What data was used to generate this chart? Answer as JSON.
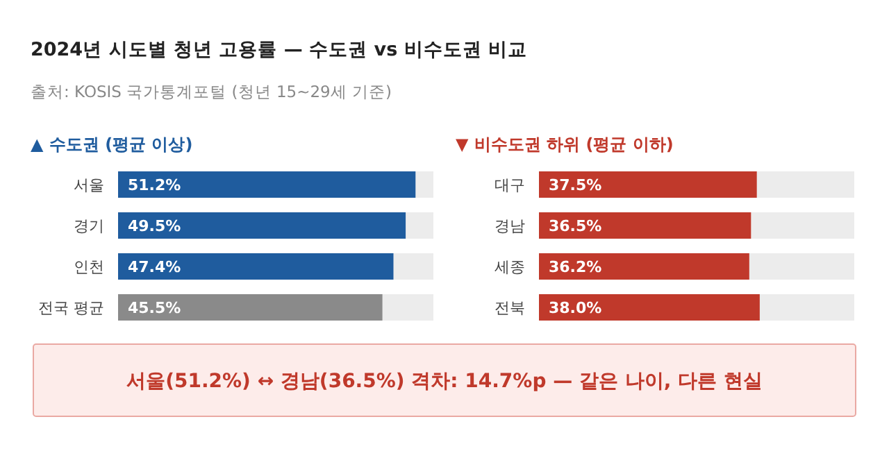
{
  "chart_data": [
    {
      "type": "other",
      "title": "2024년 시도별 청년 고용률 — 수도권 vs 비수도권 비교",
      "subtitle": "출처: KOSIS 국가통계포털 (청년 15~29세 기준)"
    },
    {
      "type": "bar",
      "orientation": "horizontal",
      "title": "▲ 수도권 (평균 이상)",
      "categories": [
        "서울",
        "경기",
        "인천",
        "전국 평균"
      ],
      "values": [
        51.2,
        49.5,
        47.4,
        45.5
      ],
      "colors": [
        "#1f5c9e",
        "#1f5c9e",
        "#1f5c9e",
        "#8a8a8a"
      ],
      "value_labels": [
        "51.2%",
        "49.5%",
        "47.4%",
        "45.5%"
      ]
    },
    {
      "type": "bar",
      "orientation": "horizontal",
      "title": "▼ 비수도권 하위 (평균 이하)",
      "categories": [
        "대구",
        "경남",
        "세종",
        "전북"
      ],
      "values": [
        37.5,
        36.5,
        36.2,
        38.0
      ],
      "colors": [
        "#c0392b",
        "#c0392b",
        "#c0392b",
        "#c0392b"
      ],
      "value_labels": [
        "37.5%",
        "36.5%",
        "36.2%",
        "38.0%"
      ]
    },
    {
      "type": "other",
      "annotations": [
        "서울(51.2%) ↔ 경남(36.5%) 격차: 14.7%p — 같은 나이, 다른 현실"
      ]
    }
  ]
}
